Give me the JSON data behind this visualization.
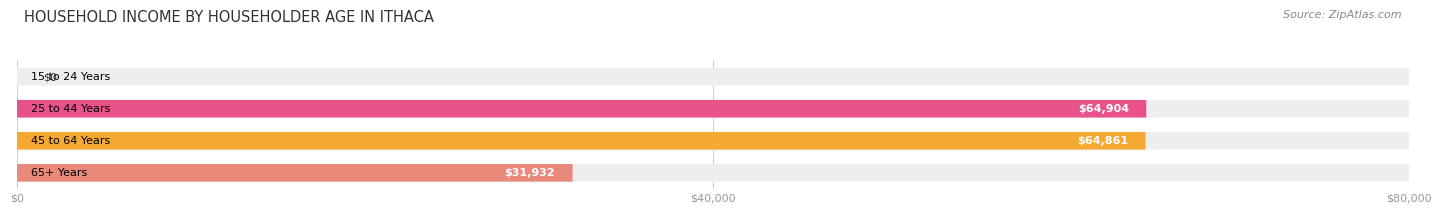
{
  "title": "HOUSEHOLD INCOME BY HOUSEHOLDER AGE IN ITHACA",
  "source": "Source: ZipAtlas.com",
  "categories": [
    "15 to 24 Years",
    "25 to 44 Years",
    "45 to 64 Years",
    "65+ Years"
  ],
  "values": [
    0,
    64904,
    64861,
    31932
  ],
  "bar_colors": [
    "#9999cc",
    "#e8518a",
    "#f5a832",
    "#e8897a"
  ],
  "bar_bg_color": "#eeeeee",
  "xlim": [
    0,
    80000
  ],
  "xticks": [
    0,
    40000,
    80000
  ],
  "xtick_labels": [
    "$0",
    "$40,000",
    "$80,000"
  ],
  "title_fontsize": 10.5,
  "source_fontsize": 8,
  "label_fontsize": 8,
  "value_fontsize": 8,
  "bar_height": 0.55,
  "background_color": "#ffffff",
  "value_labels": [
    "$0",
    "$64,904",
    "$64,861",
    "$31,932"
  ]
}
